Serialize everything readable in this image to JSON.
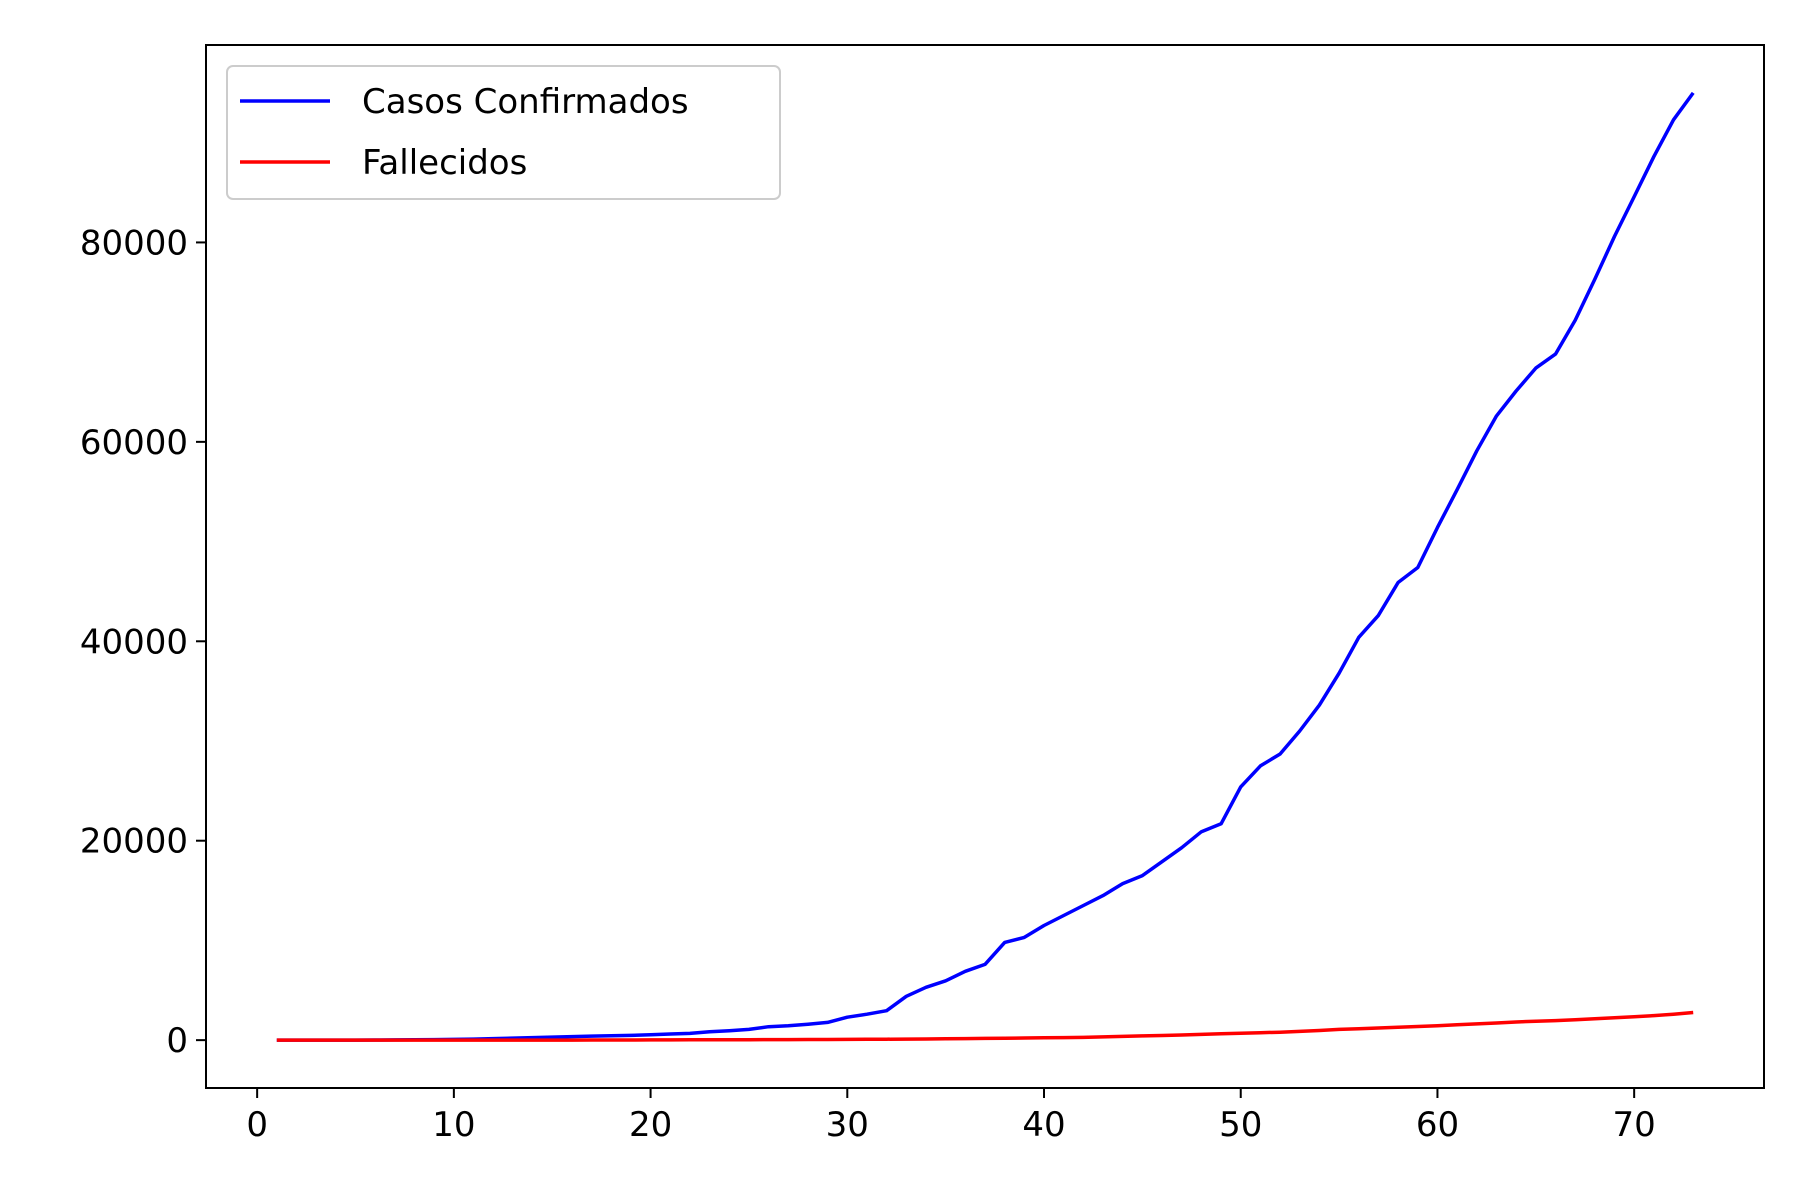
{
  "chart_data": {
    "type": "line",
    "title": "",
    "xlabel": "",
    "ylabel": "",
    "xlim": [
      -2.6,
      76.6
    ],
    "ylim": [
      -4800,
      99800
    ],
    "xticks": [
      0,
      10,
      20,
      30,
      40,
      50,
      60,
      70
    ],
    "yticks": [
      0,
      20000,
      40000,
      60000,
      80000
    ],
    "grid": false,
    "legend_position": "top-left",
    "x": [
      1,
      2,
      3,
      4,
      5,
      6,
      7,
      8,
      9,
      10,
      11,
      12,
      13,
      14,
      15,
      16,
      17,
      18,
      19,
      20,
      21,
      22,
      23,
      24,
      25,
      26,
      27,
      28,
      29,
      30,
      31,
      32,
      33,
      34,
      35,
      36,
      37,
      38,
      39,
      40,
      41,
      42,
      43,
      44,
      45,
      46,
      47,
      48,
      49,
      50,
      51,
      52,
      53,
      54,
      55,
      56,
      57,
      58,
      59,
      60,
      61,
      62,
      63,
      64,
      65,
      66,
      67,
      68,
      69,
      70,
      71,
      72,
      73
    ],
    "series": [
      {
        "name": "Casos Confirmados",
        "color": "#0000ff",
        "values": [
          0,
          0,
          0,
          0,
          5,
          10,
          20,
          30,
          50,
          70,
          100,
          150,
          200,
          250,
          300,
          350,
          400,
          430,
          480,
          550,
          620,
          680,
          850,
          950,
          1080,
          1350,
          1450,
          1600,
          1780,
          2300,
          2600,
          2950,
          4400,
          5300,
          5950,
          6900,
          7600,
          9800,
          10300,
          11500,
          12500,
          13500,
          14500,
          15700,
          16500,
          17900,
          19300,
          20900,
          21700,
          25400,
          27500,
          28700,
          31000,
          33600,
          36800,
          40400,
          42600,
          45900,
          47400,
          51400,
          55200,
          59100,
          62600,
          65100,
          67400,
          68800,
          72200,
          76300,
          80600,
          84600,
          88600,
          92300,
          95000
        ]
      },
      {
        "name": "Fallecidos",
        "color": "#ff0000",
        "values": [
          0,
          0,
          0,
          0,
          0,
          0,
          0,
          0,
          1,
          2,
          3,
          4,
          5,
          6,
          7,
          8,
          10,
          12,
          15,
          20,
          25,
          30,
          35,
          40,
          45,
          50,
          55,
          60,
          65,
          70,
          80,
          90,
          100,
          110,
          130,
          150,
          170,
          190,
          210,
          230,
          250,
          270,
          320,
          370,
          420,
          470,
          520,
          580,
          640,
          700,
          750,
          800,
          880,
          970,
          1080,
          1150,
          1220,
          1300,
          1370,
          1450,
          1540,
          1630,
          1720,
          1820,
          1900,
          1960,
          2050,
          2150,
          2240,
          2340,
          2460,
          2600,
          2770
        ]
      }
    ]
  }
}
